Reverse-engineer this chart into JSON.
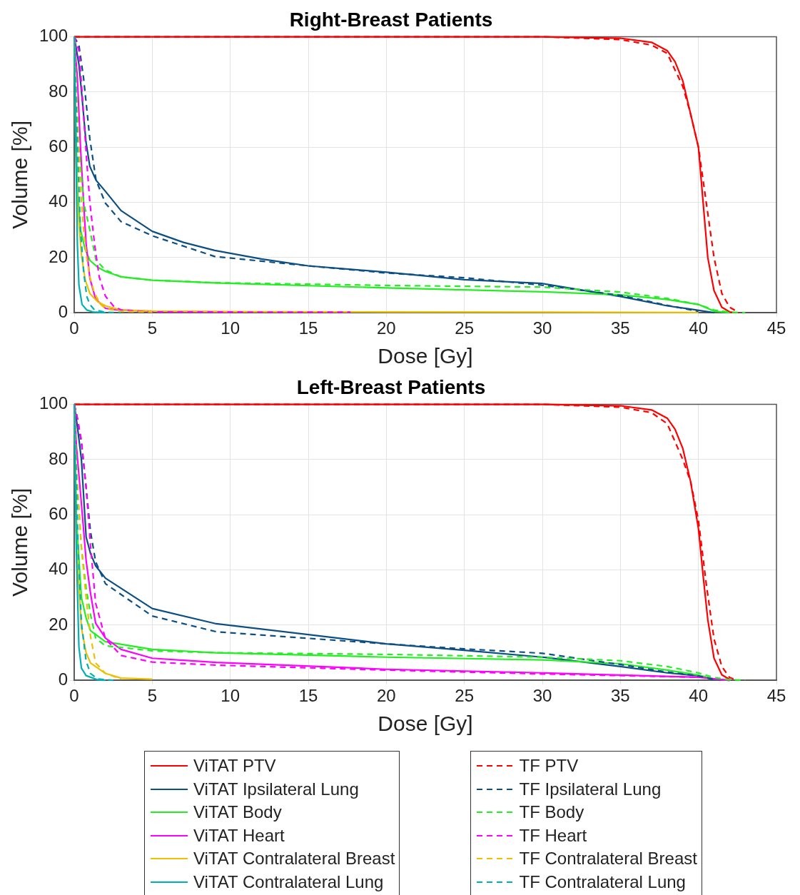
{
  "chart_data": [
    {
      "type": "line",
      "title": "Right-Breast Patients",
      "xlabel": "Dose [Gy]",
      "ylabel": "Volume [%]",
      "xlim": [
        0,
        45
      ],
      "ylim": [
        0,
        100
      ],
      "xticks": [
        0,
        5,
        10,
        15,
        20,
        25,
        30,
        35,
        40,
        45
      ],
      "yticks": [
        0,
        20,
        40,
        60,
        80,
        100
      ],
      "grid": true,
      "series": [
        {
          "color": "#ff0000",
          "line_style": "solid",
          "x": [
            0,
            30,
            35,
            37,
            38,
            38.5,
            39,
            39.5,
            40,
            40.3,
            40.6,
            41,
            41.5,
            42,
            42.3
          ],
          "values": [
            100,
            100,
            99.5,
            98,
            95,
            91,
            84,
            72,
            60,
            40,
            20,
            8,
            2,
            0.3,
            0
          ]
        },
        {
          "color": "#0b4f85",
          "line_style": "solid",
          "x": [
            0,
            0.3,
            0.5,
            0.75,
            1,
            1.4,
            2,
            3,
            5,
            7,
            9,
            12,
            15,
            20,
            25,
            30,
            35,
            38,
            39.5,
            41
          ],
          "values": [
            100,
            90,
            78,
            62,
            53,
            48,
            44,
            37,
            29.5,
            25.5,
            22.6,
            19.5,
            17,
            14.7,
            12,
            10.6,
            5.9,
            2.5,
            1.3,
            0
          ]
        },
        {
          "color": "#22ee22",
          "line_style": "solid",
          "x": [
            0,
            0.1,
            0.2,
            0.4,
            0.7,
            1,
            1.5,
            2,
            3,
            5,
            9,
            20,
            30,
            35,
            38,
            40,
            41,
            42
          ],
          "values": [
            100,
            70,
            45,
            30,
            23,
            19,
            16.5,
            15,
            13,
            11.8,
            10.8,
            9,
            7.6,
            6.5,
            4.8,
            3,
            0.6,
            0
          ]
        },
        {
          "color": "#ff00ff",
          "line_style": "solid",
          "x": [
            0,
            0.2,
            0.4,
            0.6,
            0.76,
            1,
            1.37,
            2,
            2.5,
            3,
            5,
            10
          ],
          "values": [
            100,
            85,
            60,
            40,
            25,
            12.5,
            5,
            1.6,
            1.2,
            1,
            0.5,
            0.3
          ]
        },
        {
          "color": "#eec000",
          "line_style": "solid",
          "x": [
            0,
            0.1,
            0.2,
            0.46,
            0.7,
            1,
            1.5,
            2,
            3,
            5,
            10,
            20,
            30,
            40
          ],
          "values": [
            100,
            60,
            40,
            21,
            12,
            7,
            4,
            2.5,
            1,
            0.6,
            0.4,
            0.3,
            0.2,
            0.1
          ]
        },
        {
          "color": "#00b0b8",
          "line_style": "solid",
          "x": [
            0,
            0.1,
            0.2,
            0.3,
            0.5,
            0.8,
            1.2,
            2
          ],
          "values": [
            100,
            60,
            25,
            10,
            3,
            1,
            0.3,
            0
          ]
        },
        {
          "color": "#ff0000",
          "line_style": "dashed",
          "x": [
            0,
            30,
            35,
            37,
            38,
            39,
            39.5,
            40,
            40.5,
            41,
            41.5,
            42,
            42.6
          ],
          "values": [
            100,
            100,
            99,
            97,
            94,
            82,
            72,
            60,
            40,
            20,
            7,
            2,
            0
          ]
        },
        {
          "color": "#0b4f85",
          "line_style": "dashed",
          "x": [
            0,
            0.3,
            0.6,
            1,
            1.4,
            2,
            3,
            5,
            9,
            15,
            20,
            25,
            30,
            35,
            38,
            40
          ],
          "values": [
            100,
            97,
            85,
            63,
            48,
            39.7,
            33,
            27.9,
            20.4,
            17,
            14.4,
            12.7,
            10,
            6.3,
            2.7,
            0.5
          ]
        },
        {
          "color": "#22ee22",
          "line_style": "dashed",
          "x": [
            0,
            0.3,
            0.6,
            1,
            1.4,
            2,
            3,
            5,
            9,
            20,
            30,
            35,
            38,
            40,
            41,
            42,
            43
          ],
          "values": [
            100,
            60,
            40,
            30,
            19,
            15.5,
            13,
            11.8,
            10.9,
            9.9,
            9.3,
            7.5,
            5.2,
            3,
            1,
            0.2,
            0
          ]
        },
        {
          "color": "#ff00ff",
          "line_style": "dashed",
          "x": [
            0,
            0.3,
            0.5,
            0.8,
            1,
            1.3,
            1.6,
            2,
            2.5,
            3,
            5,
            17.7
          ],
          "values": [
            100,
            95,
            80,
            55,
            40,
            25,
            13,
            6,
            2.5,
            1,
            0.3,
            0.2
          ]
        },
        {
          "color": "#eec000",
          "line_style": "dashed",
          "x": [
            0,
            0.2,
            0.4,
            0.6,
            0.8,
            1,
            1.3,
            1.7,
            2,
            3,
            5
          ],
          "values": [
            100,
            70,
            45,
            30,
            20,
            13,
            7,
            3,
            1.5,
            0.5,
            0.3
          ]
        },
        {
          "color": "#00b0b8",
          "line_style": "dashed",
          "x": [
            0,
            0.2,
            0.4,
            0.6,
            0.8,
            1,
            1.3,
            2,
            3
          ],
          "values": [
            100,
            60,
            30,
            15,
            6,
            3,
            1,
            0.2,
            0
          ]
        }
      ]
    },
    {
      "type": "line",
      "title": "Left-Breast Patients",
      "xlabel": "Dose [Gy]",
      "ylabel": "Volume [%]",
      "xlim": [
        0,
        45
      ],
      "ylim": [
        0,
        100
      ],
      "xticks": [
        0,
        5,
        10,
        15,
        20,
        25,
        30,
        35,
        40,
        45
      ],
      "yticks": [
        0,
        20,
        40,
        60,
        80,
        100
      ],
      "grid": true,
      "legend": "bottom",
      "series": [
        {
          "name": "ViTAT PTV",
          "color": "#ff0000",
          "line_style": "solid",
          "x": [
            0,
            30,
            35,
            37,
            38,
            38.5,
            39,
            39.5,
            40,
            40.3,
            40.6,
            41,
            41.5,
            42
          ],
          "values": [
            100,
            100,
            99.5,
            98,
            95,
            91,
            84,
            72,
            55,
            38,
            22,
            8,
            2,
            0.3
          ]
        },
        {
          "name": "ViTAT Ipsilateral Lung",
          "color": "#0b4f85",
          "line_style": "solid",
          "x": [
            0,
            0.2,
            0.46,
            0.76,
            1.04,
            1.37,
            2,
            5,
            9.1,
            20,
            25,
            30,
            35,
            38,
            40,
            41,
            42
          ],
          "values": [
            100,
            92,
            80,
            52,
            46,
            41.5,
            37,
            26,
            20.5,
            13.2,
            10.9,
            8.4,
            5,
            2.7,
            1.6,
            0.3,
            0
          ]
        },
        {
          "name": "ViTAT Body",
          "color": "#22ee22",
          "line_style": "solid",
          "x": [
            0,
            0.15,
            0.46,
            0.76,
            1.04,
            2,
            5,
            9.1,
            20,
            30,
            35,
            38,
            40,
            41,
            42
          ],
          "values": [
            100,
            57,
            30,
            22.6,
            18,
            14,
            11.2,
            10,
            8.4,
            7.4,
            6,
            3.7,
            1.9,
            0.5,
            0
          ]
        },
        {
          "name": "ViTAT Heart",
          "color": "#ff00ff",
          "line_style": "solid",
          "x": [
            0,
            0.15,
            0.46,
            0.76,
            1.04,
            1.37,
            2,
            3,
            5,
            9.1,
            20,
            30,
            35,
            40,
            42
          ],
          "values": [
            100,
            84,
            64,
            43.5,
            31.6,
            20.7,
            15.3,
            11.2,
            8,
            6.5,
            4,
            2.7,
            1.9,
            1.1,
            0
          ]
        },
        {
          "name": "ViTAT Contralateral Breast",
          "color": "#eec000",
          "line_style": "solid",
          "x": [
            0,
            0.15,
            0.46,
            0.76,
            1.04,
            2,
            3,
            5
          ],
          "values": [
            100,
            48,
            19,
            10,
            6.3,
            2.5,
            0.8,
            0.4
          ]
        },
        {
          "name": "ViTAT Contralateral Lung",
          "color": "#00b0b8",
          "line_style": "solid",
          "x": [
            0,
            0.13,
            0.3,
            0.46,
            0.76,
            1.5,
            2
          ],
          "values": [
            100,
            48,
            12,
            4.4,
            1.7,
            0.2,
            0
          ]
        },
        {
          "name": "TF PTV",
          "color": "#ff0000",
          "line_style": "dashed",
          "x": [
            0,
            30,
            35,
            37,
            38,
            39,
            39.5,
            40,
            40.5,
            41,
            41.5,
            42,
            42.5
          ],
          "values": [
            100,
            100,
            99,
            97,
            93,
            80,
            72,
            58,
            35,
            15,
            5,
            1,
            0
          ]
        },
        {
          "name": "TF Ipsilateral Lung",
          "color": "#0b4f85",
          "line_style": "dashed",
          "x": [
            0,
            0.2,
            0.46,
            0.76,
            1.04,
            1.37,
            2,
            5,
            9.1,
            20,
            25,
            30,
            35,
            38,
            40,
            41
          ],
          "values": [
            100,
            95,
            86,
            70,
            54,
            43,
            35,
            23.3,
            17.6,
            13.2,
            11.4,
            9.8,
            5.7,
            3,
            1.6,
            0.3
          ]
        },
        {
          "name": "TF Body",
          "color": "#22ee22",
          "line_style": "dashed",
          "x": [
            0,
            0.2,
            0.46,
            0.76,
            1.04,
            1.37,
            2,
            5,
            9.1,
            20,
            30,
            35,
            38,
            40,
            41,
            42,
            43
          ],
          "values": [
            100,
            70,
            48,
            33.5,
            24,
            15.3,
            12.5,
            10.7,
            10,
            9.4,
            8.4,
            7.1,
            5,
            2.7,
            1,
            0.2,
            0
          ]
        },
        {
          "name": "TF Heart",
          "color": "#ff00ff",
          "line_style": "dashed",
          "x": [
            0,
            0.2,
            0.46,
            0.76,
            1.04,
            1.37,
            2,
            3,
            5,
            9.1,
            20,
            30,
            40
          ],
          "values": [
            100,
            95,
            87,
            70,
            49,
            28,
            15,
            9,
            6.6,
            5.5,
            3.7,
            2.3,
            1.1
          ]
        },
        {
          "name": "TF Contralateral Breast",
          "color": "#eec000",
          "line_style": "dashed",
          "x": [
            0,
            0.15,
            0.46,
            0.76,
            1.04,
            1.37,
            2,
            3
          ],
          "values": [
            100,
            75,
            48,
            30,
            16,
            6.3,
            2.5,
            0.5
          ]
        },
        {
          "name": "TF Contralateral Lung",
          "color": "#00b0b8",
          "line_style": "dashed",
          "x": [
            0,
            0.25,
            0.46,
            0.76,
            1.04,
            1.5,
            2.5
          ],
          "values": [
            100,
            48,
            20.7,
            7,
            2.5,
            0.5,
            0
          ]
        }
      ]
    }
  ]
}
